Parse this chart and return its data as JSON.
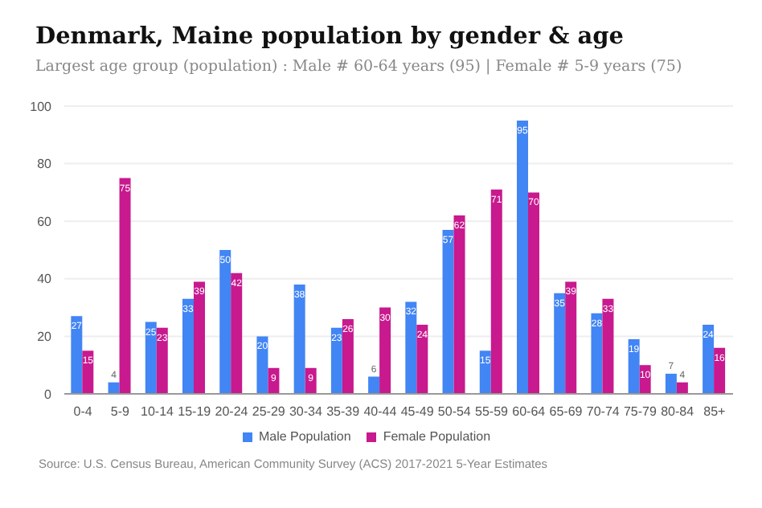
{
  "chart_data": {
    "type": "bar",
    "title": "Denmark, Maine population by gender & age",
    "subtitle": "Largest age group (population) : Male # 60-64 years (95) | Female # 5-9 years (75)",
    "categories": [
      "0-4",
      "5-9",
      "10-14",
      "15-19",
      "20-24",
      "25-29",
      "30-34",
      "35-39",
      "40-44",
      "45-49",
      "50-54",
      "55-59",
      "60-64",
      "65-69",
      "70-74",
      "75-79",
      "80-84",
      "85+"
    ],
    "series": [
      {
        "name": "Male Population",
        "color": "#4285f4",
        "values": [
          27,
          4,
          25,
          33,
          50,
          20,
          38,
          23,
          6,
          32,
          57,
          15,
          95,
          35,
          28,
          19,
          7,
          24
        ]
      },
      {
        "name": "Female Population",
        "color": "#c8198e",
        "values": [
          15,
          75,
          23,
          39,
          42,
          9,
          9,
          26,
          30,
          24,
          62,
          71,
          70,
          39,
          33,
          10,
          4,
          16
        ]
      }
    ],
    "ylim": [
      0,
      100
    ],
    "yticks": [
      0,
      20,
      40,
      60,
      80,
      100
    ],
    "grid": "y",
    "legend": "bottom",
    "data_labels": true,
    "annotations": [
      "Source: U.S. Census Bureau, American Community Survey (ACS) 2017-2021 5-Year Estimates"
    ]
  }
}
